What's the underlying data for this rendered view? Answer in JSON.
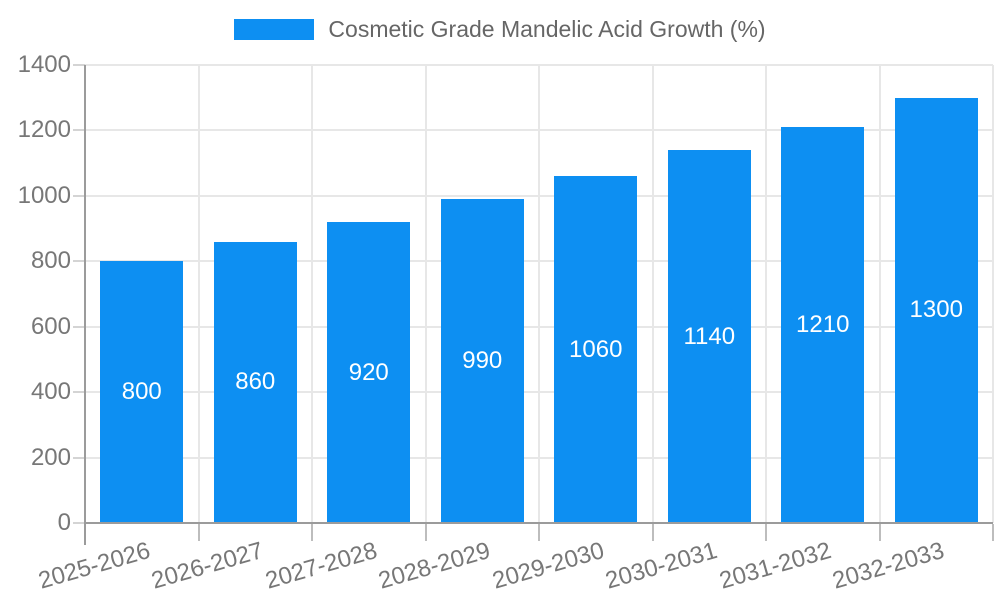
{
  "legend": {
    "label": "Cosmetic Grade Mandelic Acid Growth (%)"
  },
  "colors": {
    "bar": "#0d8ff2",
    "axis_line": "#9b9b9b",
    "gridline": "#e7e7e7",
    "tick_label": "#777777",
    "legend_text": "#666666",
    "value_label": "#ffffff",
    "background": "#ffffff"
  },
  "chart_data": {
    "type": "bar",
    "title": "Cosmetic Grade Mandelic Acid Growth (%)",
    "legend_entries": [
      "Cosmetic Grade Mandelic Acid Growth (%)"
    ],
    "legend_position": "top",
    "categories": [
      "2025-2026",
      "2026-2027",
      "2027-2028",
      "2028-2029",
      "2029-2030",
      "2030-2031",
      "2031-2032",
      "2032-2033"
    ],
    "series": [
      {
        "name": "Cosmetic Grade Mandelic Acid Growth (%)",
        "values": [
          800,
          860,
          920,
          990,
          1060,
          1140,
          1210,
          1300
        ]
      }
    ],
    "value_labels": "inside-center, white",
    "xlabel": "",
    "ylabel": "",
    "ylim": [
      0,
      1400
    ],
    "ytick_step": 200,
    "yticks": [
      0,
      200,
      400,
      600,
      800,
      1000,
      1200,
      1400
    ],
    "grid": true,
    "x_label_rotation_deg": -16
  }
}
